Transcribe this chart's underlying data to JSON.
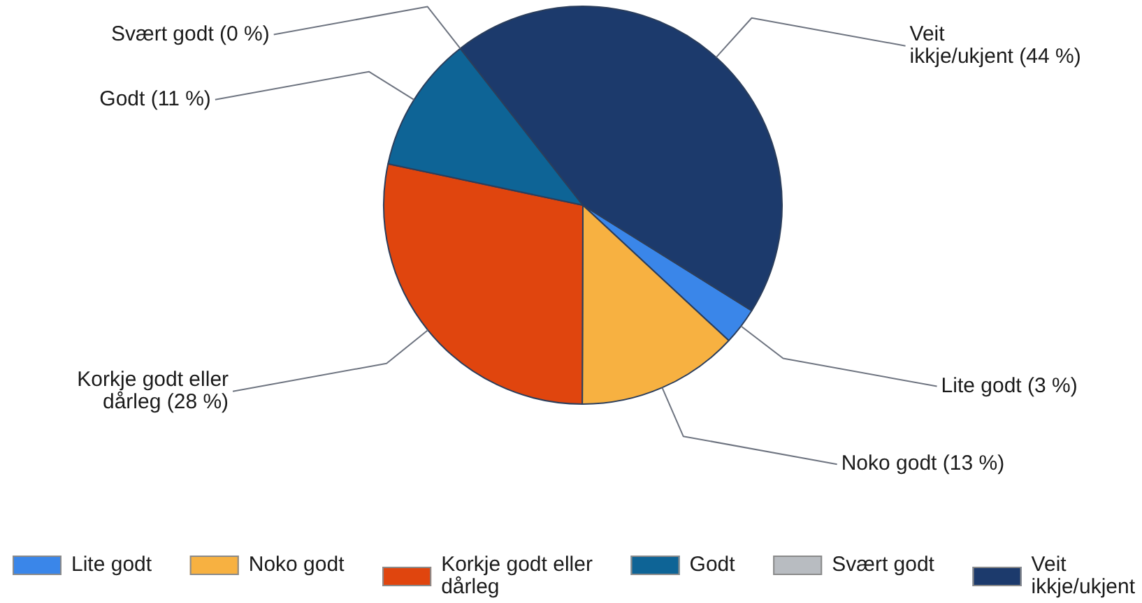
{
  "chart_data": {
    "type": "pie",
    "categories": [
      "Lite godt",
      "Noko godt",
      "Korkje godt eller dårleg",
      "Godt",
      "Svært godt",
      "Veit ikkje/ukjent"
    ],
    "values": [
      3,
      13,
      28,
      11,
      0,
      44
    ],
    "colors": [
      "#3a86e9",
      "#f7b141",
      "#e0450e",
      "#0e6496",
      "#b8bcc1",
      "#1c3a6c"
    ],
    "value_labels": [
      "(3 %)",
      "(13 %)",
      "(28 %)",
      "(11 %)",
      "(0 %)",
      "(44 %)"
    ],
    "legend": "bottom"
  }
}
